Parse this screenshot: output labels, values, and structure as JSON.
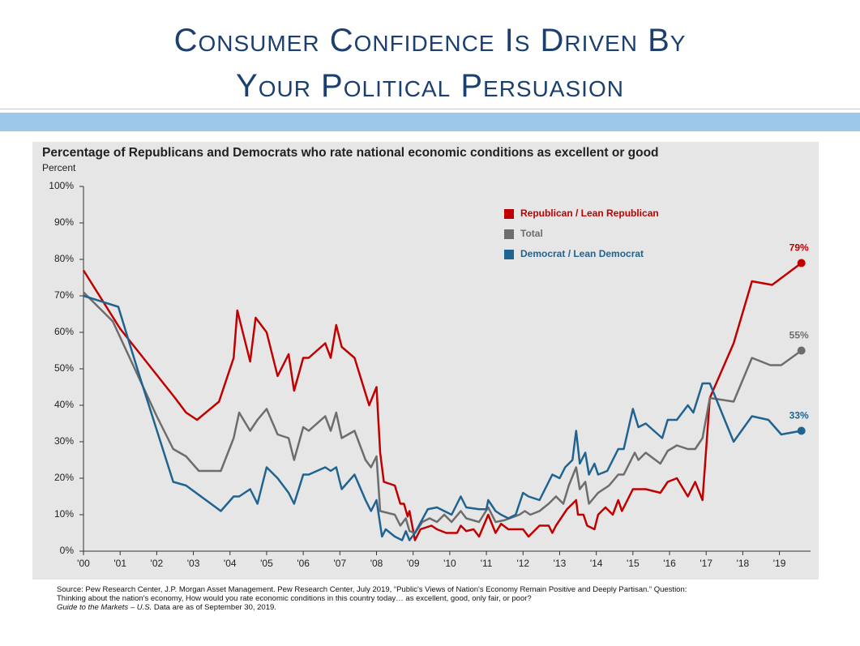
{
  "header": {
    "title_lines": [
      "Consumer Confidence Is Driven By",
      "Your Political Persuasion"
    ]
  },
  "chart_data": {
    "type": "line",
    "title": "Percentage of Republicans and Democrats who rate national economic conditions as excellent or good",
    "ylabel": "Percent",
    "xlim": [
      2000,
      2019.85
    ],
    "xticks": [
      {
        "value": 2000,
        "label": "'00"
      },
      {
        "value": 2001,
        "label": "'01"
      },
      {
        "value": 2002,
        "label": "'02"
      },
      {
        "value": 2003,
        "label": "'03"
      },
      {
        "value": 2004,
        "label": "'04"
      },
      {
        "value": 2005,
        "label": "'05"
      },
      {
        "value": 2006,
        "label": "'06"
      },
      {
        "value": 2007,
        "label": "'07"
      },
      {
        "value": 2008,
        "label": "'08"
      },
      {
        "value": 2009,
        "label": "'09"
      },
      {
        "value": 2010,
        "label": "'10"
      },
      {
        "value": 2011,
        "label": "'11"
      },
      {
        "value": 2012,
        "label": "'12"
      },
      {
        "value": 2013,
        "label": "'13"
      },
      {
        "value": 2014,
        "label": "'14"
      },
      {
        "value": 2015,
        "label": "'15"
      },
      {
        "value": 2016,
        "label": "'16"
      },
      {
        "value": 2017,
        "label": "'17"
      },
      {
        "value": 2018,
        "label": "'18"
      },
      {
        "value": 2019,
        "label": "'19"
      }
    ],
    "ylim": [
      0,
      100
    ],
    "yticks": [
      {
        "value": 0,
        "label": "0%"
      },
      {
        "value": 10,
        "label": "10%"
      },
      {
        "value": 20,
        "label": "20%"
      },
      {
        "value": 30,
        "label": "30%"
      },
      {
        "value": 40,
        "label": "40%"
      },
      {
        "value": 50,
        "label": "50%"
      },
      {
        "value": 60,
        "label": "60%"
      },
      {
        "value": 70,
        "label": "70%"
      },
      {
        "value": 80,
        "label": "80%"
      },
      {
        "value": 90,
        "label": "90%"
      },
      {
        "value": 100,
        "label": "100%"
      }
    ],
    "grid": false,
    "series": [
      {
        "name": "Republican / Lean Republican",
        "color": "#c00000",
        "end_label": "79%",
        "x": [
          2000,
          2001,
          2002.5,
          2002.8,
          2003.1,
          2003.7,
          2004.1,
          2004.2,
          2004.55,
          2004.7,
          2005.0,
          2005.3,
          2005.6,
          2005.75,
          2006.0,
          2006.15,
          2006.6,
          2006.75,
          2006.9,
          2007.05,
          2007.4,
          2007.8,
          2008.0,
          2008.1,
          2008.2,
          2008.5,
          2008.65,
          2008.75,
          2008.85,
          2008.9,
          2009.05,
          2009.2,
          2009.5,
          2009.65,
          2009.9,
          2010.2,
          2010.3,
          2010.45,
          2010.65,
          2010.8,
          2011.05,
          2011.25,
          2011.4,
          2011.6,
          2012.0,
          2012.15,
          2012.45,
          2012.7,
          2012.8,
          2012.9,
          2013.2,
          2013.45,
          2013.5,
          2013.65,
          2013.75,
          2013.95,
          2014.05,
          2014.25,
          2014.45,
          2014.6,
          2014.7,
          2015.0,
          2015.35,
          2015.75,
          2015.95,
          2016.2,
          2016.5,
          2016.7,
          2016.9,
          2017.1,
          2017.75,
          2018.25,
          2018.8,
          2019.6
        ],
        "values": [
          77,
          61,
          42,
          38,
          36,
          41,
          53,
          66,
          52,
          64,
          60,
          48,
          54,
          44,
          53,
          53,
          57,
          53,
          62,
          56,
          53,
          40,
          45,
          27,
          19,
          18,
          13,
          13,
          9.5,
          11,
          3,
          6,
          7,
          6,
          5,
          5,
          7,
          5.5,
          6,
          4,
          10,
          5,
          7.5,
          6,
          6,
          4,
          7,
          7,
          5,
          7,
          11.5,
          14,
          10,
          10,
          7,
          6,
          10,
          12,
          10,
          14,
          11,
          17,
          17,
          16,
          19,
          20,
          15,
          19,
          14,
          42,
          57,
          74,
          73,
          79
        ]
      },
      {
        "name": "Total",
        "color": "#6d6d6d",
        "end_label": "55%",
        "x": [
          2000,
          2000.8,
          2002.0,
          2002.45,
          2002.8,
          2003.15,
          2003.75,
          2004.1,
          2004.25,
          2004.55,
          2004.75,
          2005.0,
          2005.3,
          2005.6,
          2005.75,
          2006.0,
          2006.15,
          2006.6,
          2006.75,
          2006.9,
          2007.05,
          2007.4,
          2007.7,
          2007.85,
          2008.0,
          2008.1,
          2008.5,
          2008.65,
          2008.8,
          2008.9,
          2009.05,
          2009.25,
          2009.45,
          2009.65,
          2009.85,
          2010.05,
          2010.3,
          2010.45,
          2010.8,
          2011.05,
          2011.25,
          2011.5,
          2011.9,
          2012.05,
          2012.2,
          2012.45,
          2012.7,
          2012.9,
          2013.1,
          2013.25,
          2013.45,
          2013.55,
          2013.7,
          2013.8,
          2014.05,
          2014.35,
          2014.6,
          2014.75,
          2015.05,
          2015.15,
          2015.35,
          2015.75,
          2015.95,
          2016.2,
          2016.5,
          2016.7,
          2016.9,
          2017.1,
          2017.75,
          2018.25,
          2018.75,
          2019.05,
          2019.6
        ],
        "values": [
          71,
          63,
          37,
          28,
          26,
          22,
          22,
          31,
          38,
          33,
          36,
          39,
          32,
          31,
          25,
          34,
          33,
          37,
          33,
          38,
          31,
          33,
          25,
          23,
          26,
          11,
          10,
          7,
          9,
          5.5,
          5,
          8,
          9,
          8,
          10,
          8,
          11,
          9,
          8,
          12,
          8,
          8.5,
          10,
          11,
          10,
          11,
          13,
          15,
          13,
          18,
          23,
          17,
          19,
          13,
          16,
          18,
          21,
          21,
          27,
          25,
          27,
          24,
          27.5,
          29,
          28,
          28,
          31,
          42,
          41,
          53,
          51,
          51,
          55
        ]
      },
      {
        "name": "Democrat / Lean Democrat",
        "color": "#1f6391",
        "end_label": "33%",
        "x": [
          2000,
          2000.95,
          2001.5,
          2002.45,
          2002.8,
          2003.75,
          2004.1,
          2004.25,
          2004.55,
          2004.75,
          2005.0,
          2005.3,
          2005.6,
          2005.75,
          2006.0,
          2006.15,
          2006.6,
          2006.75,
          2006.9,
          2007.05,
          2007.4,
          2007.7,
          2007.85,
          2008.0,
          2008.15,
          2008.25,
          2008.5,
          2008.7,
          2008.8,
          2008.9,
          2009.05,
          2009.4,
          2009.65,
          2009.85,
          2010.05,
          2010.3,
          2010.45,
          2010.8,
          2011.0,
          2011.05,
          2011.25,
          2011.4,
          2011.6,
          2011.8,
          2012.0,
          2012.15,
          2012.45,
          2012.7,
          2012.8,
          2013.0,
          2013.15,
          2013.35,
          2013.45,
          2013.55,
          2013.7,
          2013.8,
          2013.95,
          2014.05,
          2014.3,
          2014.6,
          2014.75,
          2015.0,
          2015.15,
          2015.35,
          2015.8,
          2015.95,
          2016.2,
          2016.5,
          2016.65,
          2016.9,
          2017.1,
          2017.75,
          2018.25,
          2018.7,
          2019.05,
          2019.6
        ],
        "values": [
          70,
          67,
          49,
          19,
          18,
          11,
          15,
          15,
          17,
          13,
          23,
          20,
          16,
          13,
          21,
          21,
          23,
          22,
          23,
          17,
          21,
          14,
          11,
          14,
          4,
          6,
          4,
          3,
          5.5,
          3,
          5,
          11.5,
          12,
          11,
          10,
          15,
          12,
          11.5,
          11.5,
          14,
          11,
          10,
          9,
          10,
          16,
          15,
          14,
          19,
          21,
          20,
          23,
          25,
          33,
          24,
          27,
          21,
          24,
          21,
          22,
          28,
          28,
          39,
          34,
          35,
          31,
          36,
          36,
          40,
          38,
          46,
          46,
          30,
          37,
          36,
          32,
          33
        ]
      }
    ]
  },
  "footer": {
    "source": "Source: Pew Research Center, J.P. Morgan Asset Management.  Pew Research Center, July 2019, “Public's Views of Nation's Economy Remain Positive and Deeply Partisan.” Question: Thinking about the nation's economy, How would you rate economic conditions in this country today… as excellent, good, only fair, or poor?",
    "guide": "Guide to the Markets – U.S.",
    "as_of": "Data are as of September 30, 2019."
  }
}
